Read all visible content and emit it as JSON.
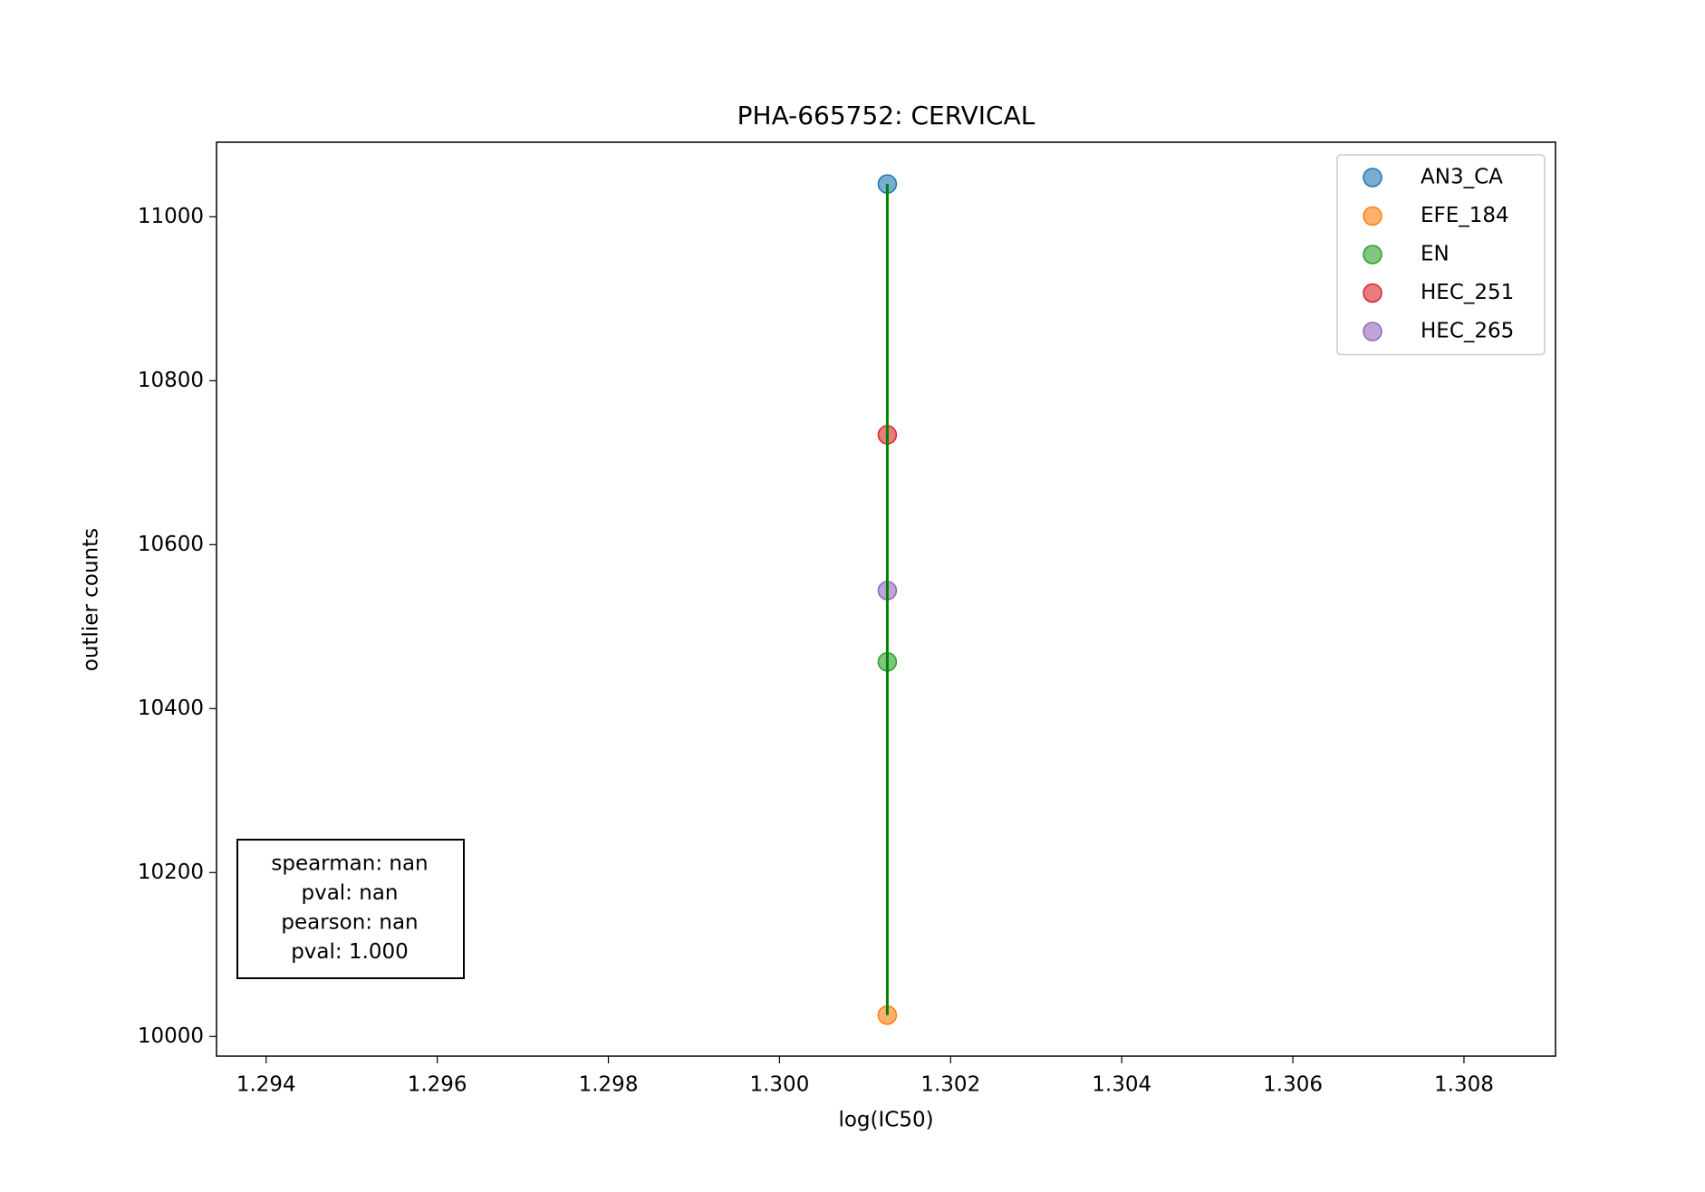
{
  "chart_data": {
    "type": "scatter",
    "title": "PHA-665752: CERVICAL",
    "x_label": "log(IC50)",
    "y_label": "outlier counts",
    "series": [
      {
        "name": "AN3_CA",
        "color": "#1f77b4",
        "x": [
          1.30126
        ],
        "values": [
          11040
        ]
      },
      {
        "name": "EFE_184",
        "color": "#ff7f0e",
        "x": [
          1.30126
        ],
        "values": [
          10026
        ]
      },
      {
        "name": "EN",
        "color": "#2ca02c",
        "x": [
          1.30126
        ],
        "values": [
          10457
        ]
      },
      {
        "name": "HEC_251",
        "color": "#d62728",
        "x": [
          1.30126
        ],
        "values": [
          10734
        ]
      },
      {
        "name": "HEC_265",
        "color": "#9467bd",
        "x": [
          1.30126
        ],
        "values": [
          10544
        ]
      }
    ],
    "fit_line": {
      "color": "green",
      "x": [
        1.30126,
        1.30126
      ],
      "values": [
        10026,
        11040
      ]
    },
    "annotation": [
      "spearman: nan",
      "pval: nan",
      "pearson: nan",
      "pval: 1.000"
    ],
    "xlim": [
      1.29342,
      1.30907
    ],
    "xticks": [
      1.294,
      1.296,
      1.298,
      {
        "value": 1.3,
        "label": "1.300"
      },
      1.302,
      1.304,
      1.306,
      1.308
    ],
    "ylim": [
      9976,
      11091
    ],
    "yticks": [
      10000,
      10200,
      10400,
      10600,
      10800,
      11000
    ],
    "legend": "upper right"
  }
}
